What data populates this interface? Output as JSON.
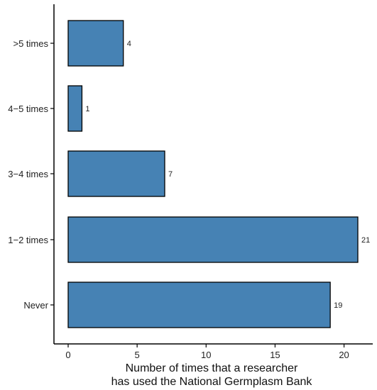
{
  "chart_data": {
    "type": "bar",
    "orientation": "horizontal",
    "categories": [
      "Never",
      "1−2 times",
      "3−4 times",
      "4−5 times",
      ">5 times"
    ],
    "values": [
      19,
      21,
      7,
      1,
      4
    ],
    "data_labels": [
      "19",
      "21",
      "7",
      "1",
      "4"
    ],
    "xlabel_lines": [
      "Number of times that a researcher",
      "has used the National Germplasm Bank"
    ],
    "ylabel": "",
    "xlim": [
      0,
      21.5
    ],
    "xticks": [
      0,
      5,
      10,
      15,
      20
    ],
    "grid": false,
    "legend": "none",
    "bar_color": "#4682B4",
    "bar_edge_color": "#000000"
  }
}
